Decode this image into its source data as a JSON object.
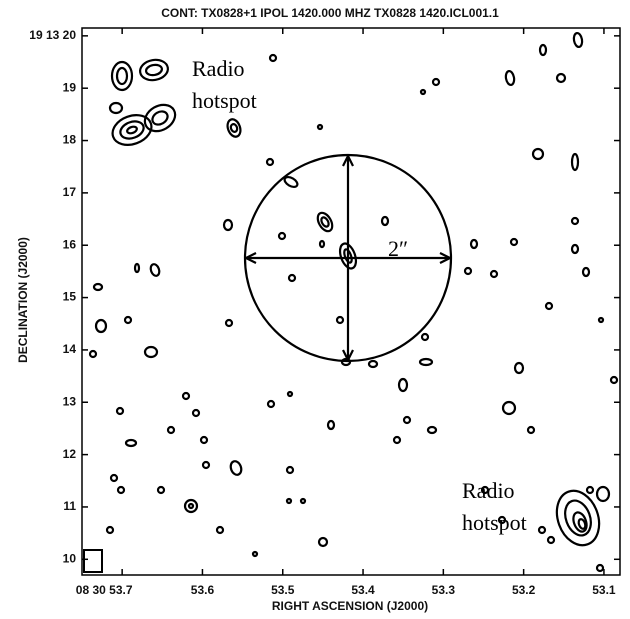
{
  "chart_data": {
    "type": "contour",
    "title": "CONT: TX0828+1  IPOL  1420.000 MHZ  TX0828 1420.ICL001.1",
    "xlabel": "RIGHT ASCENSION (J2000)",
    "ylabel": "DECLINATION (J2000)",
    "xlim": [
      53.75,
      53.08
    ],
    "xticks": [
      {
        "value": 53.7,
        "label": "08 30 53.7"
      },
      53.6,
      53.5,
      53.4,
      53.3,
      53.2,
      53.1
    ],
    "ylim": [
      9.7,
      20.15
    ],
    "yticks": [
      10,
      11,
      12,
      13,
      14,
      15,
      16,
      17,
      18,
      19,
      {
        "value": 20,
        "label": "19 13 20"
      }
    ],
    "annotations": [
      "Radio",
      "hotspot",
      "Radio",
      "hotspot",
      "2″"
    ]
  }
}
